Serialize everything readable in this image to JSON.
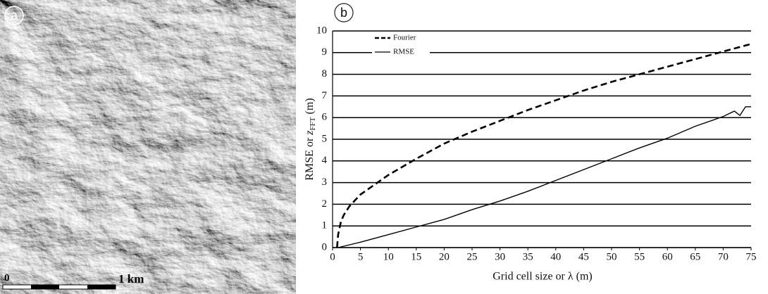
{
  "image_panel": {
    "label": "a",
    "scale_bar": {
      "start": "0",
      "end": "1 km"
    }
  },
  "chart_data": {
    "type": "line",
    "panel_label": "b",
    "x_label": "Grid cell size or λ (m)",
    "y_label": {
      "text": "RMSE or ",
      "var": "z",
      "sub": "FFT",
      "unit": " (m)"
    },
    "xlim": [
      0,
      75
    ],
    "xticks": [
      0,
      5,
      10,
      15,
      20,
      25,
      30,
      35,
      40,
      45,
      50,
      55,
      60,
      65,
      70,
      75
    ],
    "ylim": [
      0,
      10
    ],
    "yticks": [
      0,
      1,
      2,
      3,
      4,
      5,
      6,
      7,
      8,
      9,
      10
    ],
    "grid": true,
    "legend": "upper left",
    "series": [
      {
        "name": "Fourier",
        "color": "#000000",
        "line_style": "dashed",
        "x": [
          0.8,
          1,
          1.5,
          2,
          3,
          5,
          10,
          15,
          20,
          25,
          30,
          35,
          40,
          45,
          50,
          55,
          60,
          65,
          70,
          75
        ],
        "values": [
          0,
          0.6,
          1.2,
          1.5,
          1.9,
          2.45,
          3.35,
          4.1,
          4.8,
          5.35,
          5.85,
          6.35,
          6.8,
          7.25,
          7.65,
          8.0,
          8.35,
          8.7,
          9.05,
          9.4
        ]
      },
      {
        "name": "RMSE",
        "color": "#000000",
        "line_style": "solid",
        "x": [
          1,
          5,
          10,
          15,
          20,
          25,
          30,
          35,
          40,
          45,
          50,
          55,
          60,
          65,
          70,
          72,
          73,
          74,
          75
        ],
        "values": [
          0,
          0.25,
          0.6,
          0.95,
          1.3,
          1.75,
          2.15,
          2.6,
          3.1,
          3.6,
          4.1,
          4.6,
          5.05,
          5.6,
          6.05,
          6.3,
          6.1,
          6.5,
          6.5
        ]
      }
    ]
  }
}
